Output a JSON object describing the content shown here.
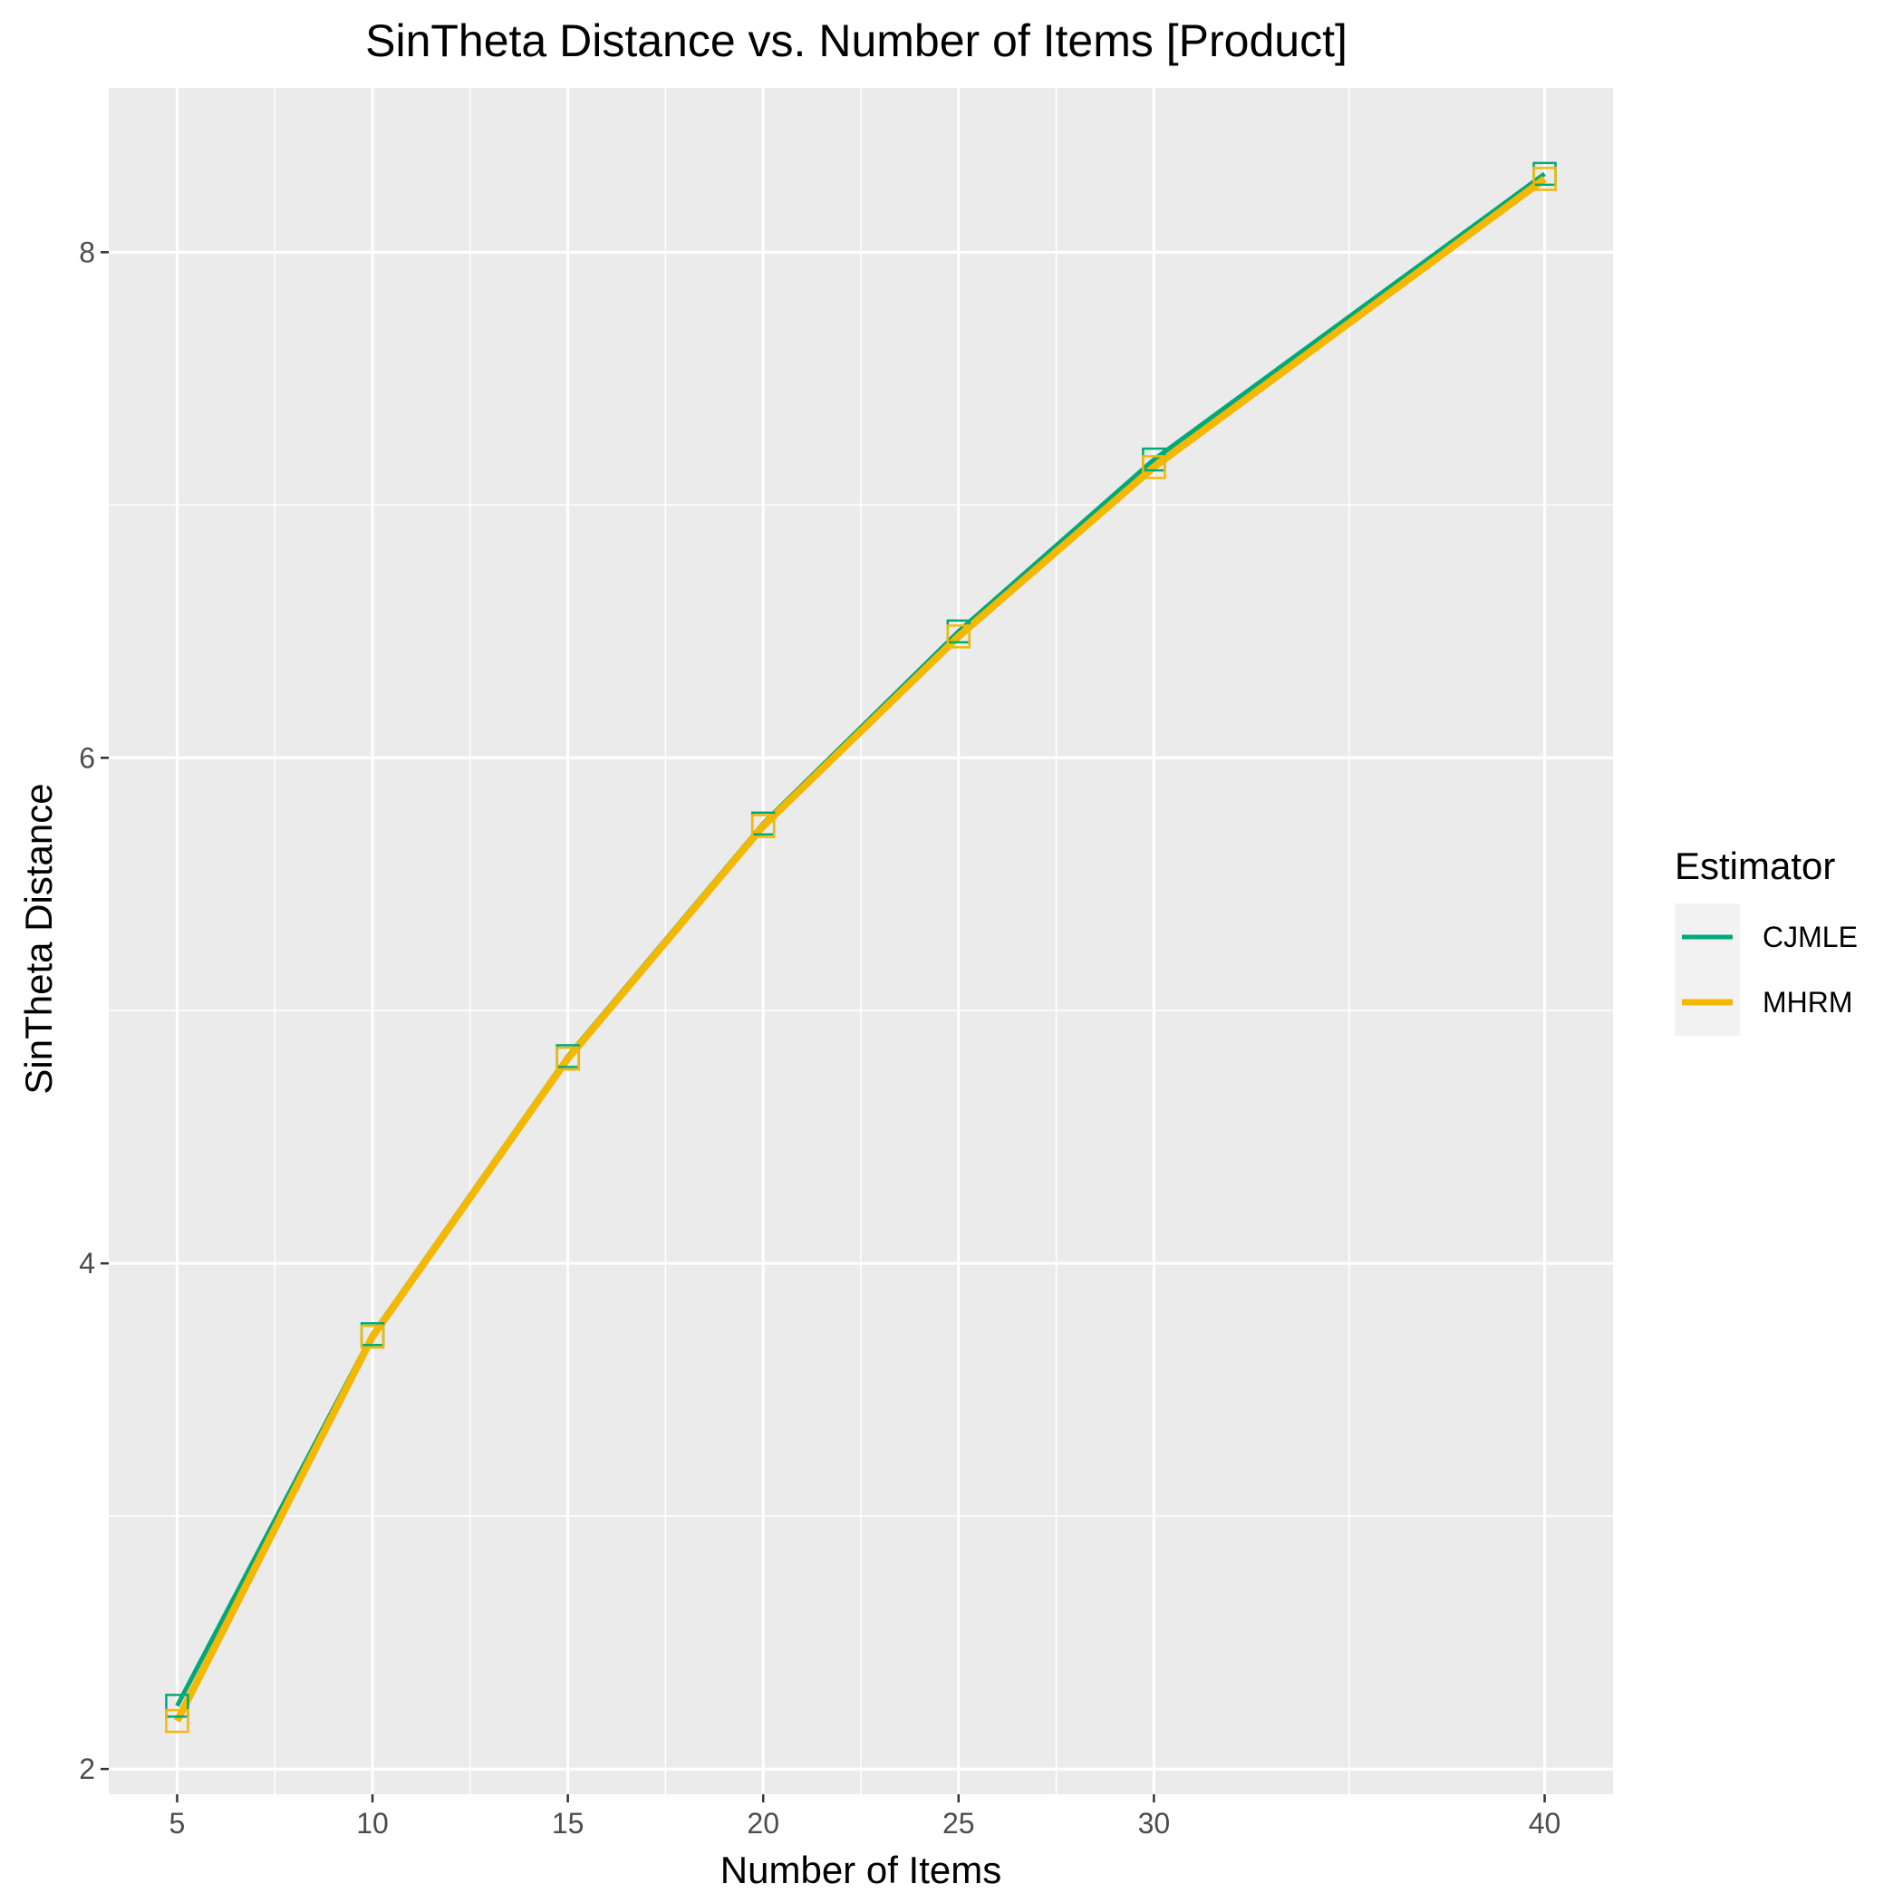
{
  "chart_data": {
    "type": "line",
    "title": "SinTheta Distance vs. Number of Items [Product]",
    "xlabel": "Number of Items",
    "ylabel": "SinTheta Distance",
    "x": [
      5,
      10,
      15,
      20,
      25,
      30,
      40
    ],
    "xlim": [
      3.25,
      41.75
    ],
    "ylim": [
      1.9,
      8.65
    ],
    "x_ticks": [
      5,
      10,
      15,
      20,
      25,
      30,
      40
    ],
    "x_tick_labels": [
      "5",
      "10",
      "15",
      "20",
      "25",
      "30",
      "40"
    ],
    "x_minor_ticks": [
      7.5,
      12.5,
      17.5,
      22.5,
      27.5,
      35
    ],
    "y_ticks": [
      2,
      4,
      6,
      8
    ],
    "y_tick_labels": [
      "2",
      "4",
      "6",
      "8"
    ],
    "y_minor_ticks": [
      3,
      5,
      7
    ],
    "series": [
      {
        "name": "CJMLE",
        "color": "#00a97a",
        "values": [
          2.25,
          3.72,
          4.82,
          5.74,
          6.5,
          7.18,
          8.31
        ]
      },
      {
        "name": "MHRM",
        "color": "#f5b800",
        "values": [
          2.19,
          3.71,
          4.81,
          5.73,
          6.48,
          7.15,
          8.29
        ]
      }
    ],
    "legend": {
      "title": "Estimator",
      "position": "right"
    },
    "grid": true,
    "panel_background": "#ebebeb",
    "marker": "open-square"
  }
}
